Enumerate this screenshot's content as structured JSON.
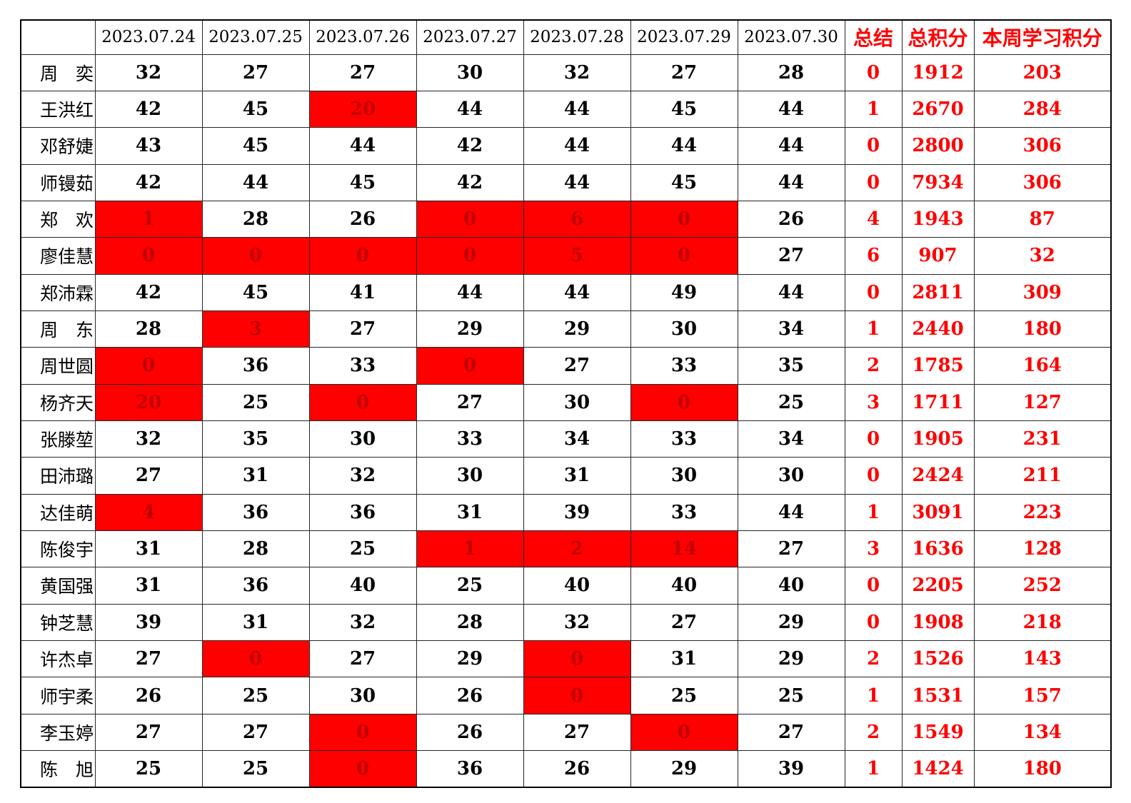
{
  "colors": {
    "highlight_bg": "#FF0000",
    "highlight_text": "#C00000",
    "red_text": "#FF0000"
  },
  "table": {
    "corner": "",
    "date_columns": [
      "2023.07.24",
      "2023.07.25",
      "2023.07.26",
      "2023.07.27",
      "2023.07.28",
      "2023.07.29",
      "2023.07.30"
    ],
    "summary_columns": [
      "总结",
      "总积分",
      "本周学习积分"
    ],
    "rows": [
      {
        "name": "周　奕",
        "days": [
          {
            "v": "32",
            "hl": false
          },
          {
            "v": "27",
            "hl": false
          },
          {
            "v": "27",
            "hl": false
          },
          {
            "v": "30",
            "hl": false
          },
          {
            "v": "32",
            "hl": false
          },
          {
            "v": "27",
            "hl": false
          },
          {
            "v": "28",
            "hl": false
          }
        ],
        "summary": "0",
        "total": "1912",
        "weekly": "203"
      },
      {
        "name": "王洪红",
        "days": [
          {
            "v": "42",
            "hl": false
          },
          {
            "v": "45",
            "hl": false
          },
          {
            "v": "20",
            "hl": true
          },
          {
            "v": "44",
            "hl": false
          },
          {
            "v": "44",
            "hl": false
          },
          {
            "v": "45",
            "hl": false
          },
          {
            "v": "44",
            "hl": false
          }
        ],
        "summary": "1",
        "total": "2670",
        "weekly": "284"
      },
      {
        "name": "邓舒婕",
        "days": [
          {
            "v": "43",
            "hl": false
          },
          {
            "v": "45",
            "hl": false
          },
          {
            "v": "44",
            "hl": false
          },
          {
            "v": "42",
            "hl": false
          },
          {
            "v": "44",
            "hl": false
          },
          {
            "v": "44",
            "hl": false
          },
          {
            "v": "44",
            "hl": false
          }
        ],
        "summary": "0",
        "total": "2800",
        "weekly": "306"
      },
      {
        "name": "师镘茹",
        "days": [
          {
            "v": "42",
            "hl": false
          },
          {
            "v": "44",
            "hl": false
          },
          {
            "v": "45",
            "hl": false
          },
          {
            "v": "42",
            "hl": false
          },
          {
            "v": "44",
            "hl": false
          },
          {
            "v": "45",
            "hl": false
          },
          {
            "v": "44",
            "hl": false
          }
        ],
        "summary": "0",
        "total": "7934",
        "weekly": "306"
      },
      {
        "name": "郑　欢",
        "days": [
          {
            "v": "1",
            "hl": true
          },
          {
            "v": "28",
            "hl": false
          },
          {
            "v": "26",
            "hl": false
          },
          {
            "v": "0",
            "hl": true
          },
          {
            "v": "6",
            "hl": true
          },
          {
            "v": "0",
            "hl": true
          },
          {
            "v": "26",
            "hl": false
          }
        ],
        "summary": "4",
        "total": "1943",
        "weekly": "87"
      },
      {
        "name": "廖佳慧",
        "days": [
          {
            "v": "0",
            "hl": true
          },
          {
            "v": "0",
            "hl": true
          },
          {
            "v": "0",
            "hl": true
          },
          {
            "v": "0",
            "hl": true
          },
          {
            "v": "5",
            "hl": true
          },
          {
            "v": "0",
            "hl": true
          },
          {
            "v": "27",
            "hl": false
          }
        ],
        "summary": "6",
        "total": "907",
        "weekly": "32"
      },
      {
        "name": "郑沛霖",
        "days": [
          {
            "v": "42",
            "hl": false
          },
          {
            "v": "45",
            "hl": false
          },
          {
            "v": "41",
            "hl": false
          },
          {
            "v": "44",
            "hl": false
          },
          {
            "v": "44",
            "hl": false
          },
          {
            "v": "49",
            "hl": false
          },
          {
            "v": "44",
            "hl": false
          }
        ],
        "summary": "0",
        "total": "2811",
        "weekly": "309"
      },
      {
        "name": "周　东",
        "days": [
          {
            "v": "28",
            "hl": false
          },
          {
            "v": "3",
            "hl": true
          },
          {
            "v": "27",
            "hl": false
          },
          {
            "v": "29",
            "hl": false
          },
          {
            "v": "29",
            "hl": false
          },
          {
            "v": "30",
            "hl": false
          },
          {
            "v": "34",
            "hl": false
          }
        ],
        "summary": "1",
        "total": "2440",
        "weekly": "180"
      },
      {
        "name": "周世圆",
        "days": [
          {
            "v": "0",
            "hl": true
          },
          {
            "v": "36",
            "hl": false
          },
          {
            "v": "33",
            "hl": false
          },
          {
            "v": "0",
            "hl": true
          },
          {
            "v": "27",
            "hl": false
          },
          {
            "v": "33",
            "hl": false
          },
          {
            "v": "35",
            "hl": false
          }
        ],
        "summary": "2",
        "total": "1785",
        "weekly": "164"
      },
      {
        "name": "杨齐天",
        "days": [
          {
            "v": "20",
            "hl": true
          },
          {
            "v": "25",
            "hl": false
          },
          {
            "v": "0",
            "hl": true
          },
          {
            "v": "27",
            "hl": false
          },
          {
            "v": "30",
            "hl": false
          },
          {
            "v": "0",
            "hl": true
          },
          {
            "v": "25",
            "hl": false
          }
        ],
        "summary": "3",
        "total": "1711",
        "weekly": "127"
      },
      {
        "name": "张滕堃",
        "days": [
          {
            "v": "32",
            "hl": false
          },
          {
            "v": "35",
            "hl": false
          },
          {
            "v": "30",
            "hl": false
          },
          {
            "v": "33",
            "hl": false
          },
          {
            "v": "34",
            "hl": false
          },
          {
            "v": "33",
            "hl": false
          },
          {
            "v": "34",
            "hl": false
          }
        ],
        "summary": "0",
        "total": "1905",
        "weekly": "231"
      },
      {
        "name": "田沛璐",
        "days": [
          {
            "v": "27",
            "hl": false
          },
          {
            "v": "31",
            "hl": false
          },
          {
            "v": "32",
            "hl": false
          },
          {
            "v": "30",
            "hl": false
          },
          {
            "v": "31",
            "hl": false
          },
          {
            "v": "30",
            "hl": false
          },
          {
            "v": "30",
            "hl": false
          }
        ],
        "summary": "0",
        "total": "2424",
        "weekly": "211"
      },
      {
        "name": "达佳萌",
        "days": [
          {
            "v": "4",
            "hl": true
          },
          {
            "v": "36",
            "hl": false
          },
          {
            "v": "36",
            "hl": false
          },
          {
            "v": "31",
            "hl": false
          },
          {
            "v": "39",
            "hl": false
          },
          {
            "v": "33",
            "hl": false
          },
          {
            "v": "44",
            "hl": false
          }
        ],
        "summary": "1",
        "total": "3091",
        "weekly": "223"
      },
      {
        "name": "陈俊宇",
        "days": [
          {
            "v": "31",
            "hl": false
          },
          {
            "v": "28",
            "hl": false
          },
          {
            "v": "25",
            "hl": false
          },
          {
            "v": "1",
            "hl": true
          },
          {
            "v": "2",
            "hl": true
          },
          {
            "v": "14",
            "hl": true
          },
          {
            "v": "27",
            "hl": false
          }
        ],
        "summary": "3",
        "total": "1636",
        "weekly": "128"
      },
      {
        "name": "黄国强",
        "days": [
          {
            "v": "31",
            "hl": false
          },
          {
            "v": "36",
            "hl": false
          },
          {
            "v": "40",
            "hl": false
          },
          {
            "v": "25",
            "hl": false
          },
          {
            "v": "40",
            "hl": false
          },
          {
            "v": "40",
            "hl": false
          },
          {
            "v": "40",
            "hl": false
          }
        ],
        "summary": "0",
        "total": "2205",
        "weekly": "252"
      },
      {
        "name": "钟芝慧",
        "days": [
          {
            "v": "39",
            "hl": false
          },
          {
            "v": "31",
            "hl": false
          },
          {
            "v": "32",
            "hl": false
          },
          {
            "v": "28",
            "hl": false
          },
          {
            "v": "32",
            "hl": false
          },
          {
            "v": "27",
            "hl": false
          },
          {
            "v": "29",
            "hl": false
          }
        ],
        "summary": "0",
        "total": "1908",
        "weekly": "218"
      },
      {
        "name": "许杰卓",
        "days": [
          {
            "v": "27",
            "hl": false
          },
          {
            "v": "0",
            "hl": true
          },
          {
            "v": "27",
            "hl": false
          },
          {
            "v": "29",
            "hl": false
          },
          {
            "v": "0",
            "hl": true
          },
          {
            "v": "31",
            "hl": false
          },
          {
            "v": "29",
            "hl": false
          }
        ],
        "summary": "2",
        "total": "1526",
        "weekly": "143"
      },
      {
        "name": "师宇柔",
        "days": [
          {
            "v": "26",
            "hl": false
          },
          {
            "v": "25",
            "hl": false
          },
          {
            "v": "30",
            "hl": false
          },
          {
            "v": "26",
            "hl": false
          },
          {
            "v": "0",
            "hl": true
          },
          {
            "v": "25",
            "hl": false
          },
          {
            "v": "25",
            "hl": false
          }
        ],
        "summary": "1",
        "total": "1531",
        "weekly": "157"
      },
      {
        "name": "李玉婷",
        "days": [
          {
            "v": "27",
            "hl": false
          },
          {
            "v": "27",
            "hl": false
          },
          {
            "v": "0",
            "hl": true
          },
          {
            "v": "26",
            "hl": false
          },
          {
            "v": "27",
            "hl": false
          },
          {
            "v": "0",
            "hl": true
          },
          {
            "v": "27",
            "hl": false
          }
        ],
        "summary": "2",
        "total": "1549",
        "weekly": "134"
      },
      {
        "name": "陈　旭",
        "days": [
          {
            "v": "25",
            "hl": false
          },
          {
            "v": "25",
            "hl": false
          },
          {
            "v": "0",
            "hl": true
          },
          {
            "v": "36",
            "hl": false
          },
          {
            "v": "26",
            "hl": false
          },
          {
            "v": "29",
            "hl": false
          },
          {
            "v": "39",
            "hl": false
          }
        ],
        "summary": "1",
        "total": "1424",
        "weekly": "180"
      }
    ]
  }
}
